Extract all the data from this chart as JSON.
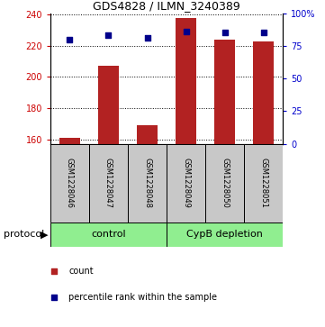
{
  "title": "GDS4828 / ILMN_3240389",
  "samples": [
    "GSM1228046",
    "GSM1228047",
    "GSM1228048",
    "GSM1228049",
    "GSM1228050",
    "GSM1228051"
  ],
  "counts": [
    161,
    207,
    169,
    238,
    224,
    223
  ],
  "percentile_ranks": [
    80,
    83,
    81,
    86,
    85,
    85
  ],
  "group_labels": [
    "control",
    "CypB depletion"
  ],
  "group_color": "#90EE90",
  "bar_color": "#B22222",
  "dot_color": "#00008B",
  "ylim_left": [
    157,
    241
  ],
  "ylim_right": [
    0,
    100
  ],
  "yticks_left": [
    160,
    180,
    200,
    220,
    240
  ],
  "yticks_right": [
    0,
    25,
    50,
    75,
    100
  ],
  "ytick_labels_right": [
    "0",
    "25",
    "50",
    "75",
    "100%"
  ],
  "grid_y": [
    160,
    180,
    200,
    220,
    240
  ],
  "bar_width": 0.55,
  "bar_bottom": 157,
  "protocol_label": "protocol",
  "legend_count_label": "count",
  "legend_pct_label": "percentile rank within the sample",
  "sample_box_color": "#C8C8C8",
  "left_tick_color": "#CC0000",
  "right_tick_color": "#0000CC",
  "title_fontsize": 9,
  "tick_fontsize": 7,
  "sample_fontsize": 6,
  "protocol_fontsize": 8,
  "legend_fontsize": 7
}
